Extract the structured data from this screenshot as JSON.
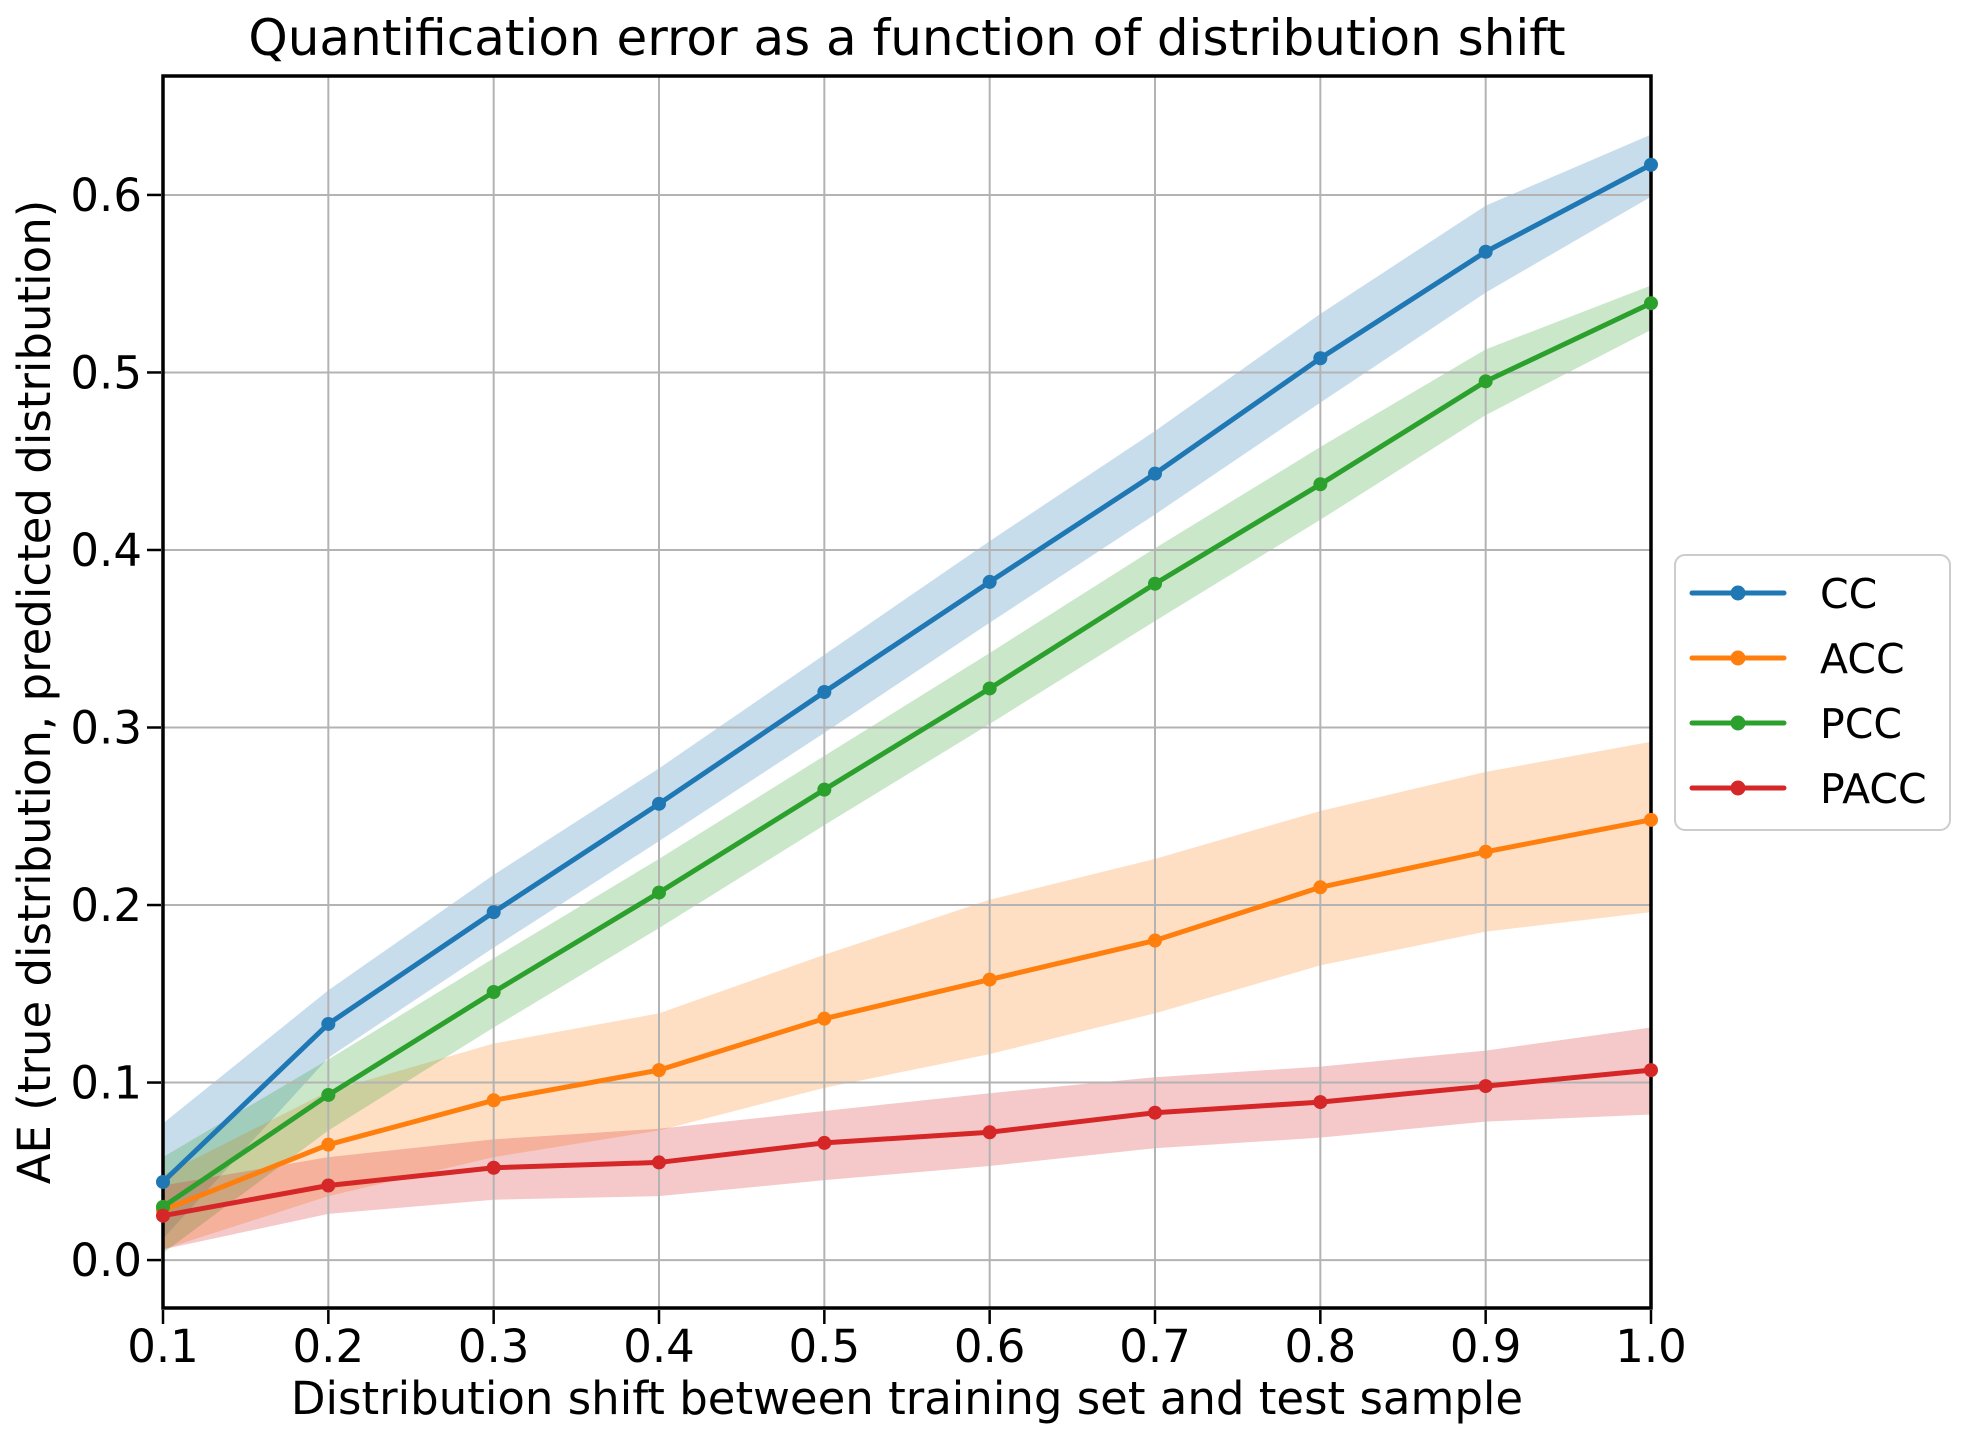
{
  "chart_data": {
    "type": "line",
    "title": "Quantification error as a function of distribution shift",
    "xlabel": "Distribution shift between training set and test sample",
    "ylabel": "AE (true distribution, predicted distribution)",
    "x": [
      0.1,
      0.2,
      0.3,
      0.4,
      0.5,
      0.6,
      0.7,
      0.8,
      0.9,
      1.0
    ],
    "x_tick_labels": [
      "0.1",
      "0.2",
      "0.3",
      "0.4",
      "0.5",
      "0.6",
      "0.7",
      "0.8",
      "0.9",
      "1.0"
    ],
    "y_ticks": [
      0.0,
      0.1,
      0.2,
      0.3,
      0.4,
      0.5,
      0.6
    ],
    "y_tick_labels": [
      "0.0",
      "0.1",
      "0.2",
      "0.3",
      "0.4",
      "0.5",
      "0.6"
    ],
    "xlim": [
      0.1,
      1.0
    ],
    "ylim": [
      -0.027,
      0.667
    ],
    "grid": true,
    "legend_position": "center right outside",
    "band_alpha": 0.25,
    "styles": {
      "gridline_color": "#b3b3b3",
      "spine_color": "#000000",
      "background_color": "#ffffff",
      "legend_border_color": "#cccccc",
      "text_color": "#000000"
    },
    "series": [
      {
        "name": "CC",
        "color": "#1f77b4",
        "values": [
          0.044,
          0.133,
          0.196,
          0.257,
          0.32,
          0.382,
          0.443,
          0.508,
          0.568,
          0.617
        ],
        "band_upper": [
          0.077,
          0.152,
          0.217,
          0.277,
          0.341,
          0.405,
          0.467,
          0.533,
          0.594,
          0.634
        ],
        "band_lower": [
          0.012,
          0.114,
          0.176,
          0.236,
          0.297,
          0.359,
          0.42,
          0.483,
          0.545,
          0.599
        ]
      },
      {
        "name": "ACC",
        "color": "#ff7f0e",
        "values": [
          0.028,
          0.065,
          0.09,
          0.107,
          0.136,
          0.158,
          0.18,
          0.21,
          0.23,
          0.248
        ],
        "band_upper": [
          0.048,
          0.095,
          0.122,
          0.139,
          0.172,
          0.203,
          0.226,
          0.253,
          0.275,
          0.292
        ],
        "band_lower": [
          0.006,
          0.036,
          0.058,
          0.073,
          0.097,
          0.116,
          0.139,
          0.166,
          0.185,
          0.196
        ]
      },
      {
        "name": "PCC",
        "color": "#2ca02c",
        "values": [
          0.03,
          0.093,
          0.151,
          0.207,
          0.265,
          0.322,
          0.381,
          0.437,
          0.495,
          0.539
        ],
        "band_upper": [
          0.058,
          0.113,
          0.17,
          0.226,
          0.284,
          0.342,
          0.401,
          0.458,
          0.513,
          0.549
        ],
        "band_lower": [
          0.004,
          0.073,
          0.131,
          0.187,
          0.245,
          0.302,
          0.36,
          0.417,
          0.476,
          0.524
        ]
      },
      {
        "name": "PACC",
        "color": "#d62728",
        "values": [
          0.025,
          0.042,
          0.052,
          0.055,
          0.066,
          0.072,
          0.083,
          0.089,
          0.098,
          0.107
        ],
        "band_upper": [
          0.042,
          0.058,
          0.068,
          0.074,
          0.084,
          0.094,
          0.103,
          0.109,
          0.118,
          0.131
        ],
        "band_lower": [
          0.006,
          0.026,
          0.034,
          0.036,
          0.045,
          0.053,
          0.063,
          0.069,
          0.078,
          0.082
        ]
      }
    ]
  }
}
